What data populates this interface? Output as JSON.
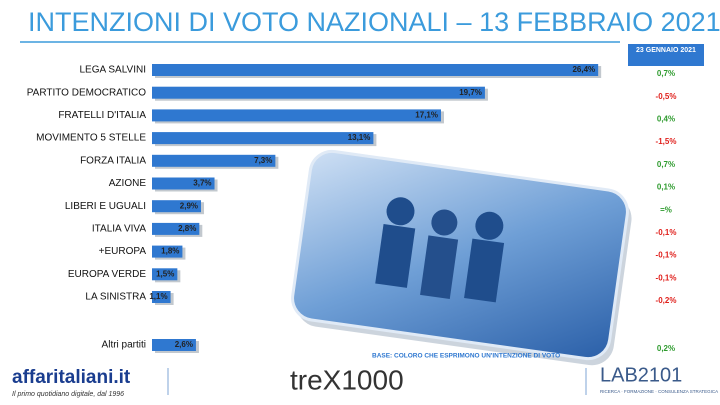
{
  "chart_data": {
    "type": "bar",
    "title": "INTENZIONI DI VOTO NAZIONALI – 13 FEBBRAIO 2021",
    "change_header": "23 GENNAIO 2021",
    "categories": [
      "LEGA SALVINI",
      "PARTITO DEMOCRATICO",
      "FRATELLI D'ITALIA",
      "MOVIMENTO 5 STELLE",
      "FORZA ITALIA",
      "AZIONE",
      "LIBERI E UGUALI",
      "ITALIA VIVA",
      "+EUROPA",
      "EUROPA VERDE",
      "LA SINISTRA",
      "Altri partiti"
    ],
    "values": [
      26.4,
      19.7,
      17.1,
      13.1,
      7.3,
      3.7,
      2.9,
      2.8,
      1.8,
      1.5,
      1.1,
      2.6
    ],
    "value_labels": [
      "26,4%",
      "19,7%",
      "17,1%",
      "13,1%",
      "7,3%",
      "3,7%",
      "2,9%",
      "2,8%",
      "1,8%",
      "1,5%",
      "1,1%",
      "2,6%"
    ],
    "changes": [
      0.7,
      -0.5,
      0.4,
      -1.5,
      0.7,
      0.1,
      0,
      -0.1,
      -0.1,
      -0.1,
      -0.2,
      0.2
    ],
    "change_labels": [
      "0,7%",
      "-0,5%",
      "0,4%",
      "-1,5%",
      "0,7%",
      "0,1%",
      "=%",
      "-0,1%",
      "-0,1%",
      "-0,1%",
      "-0,2%",
      "0,2%"
    ],
    "color": "#2f78d0",
    "base_note": "BASE: COLORO CHE ESPRIMONO UN'INTENZIONE DI VOTO",
    "logos": {
      "affari": "affaritaliani.it",
      "affari_tagline": "Il primo quotidiano digitale, dal 1996",
      "trex": "treX1000",
      "lab": "LAB2101",
      "lab_tagline": "RICERCA · FORMAZIONE · CONSULENZA STRATEGICA"
    }
  }
}
